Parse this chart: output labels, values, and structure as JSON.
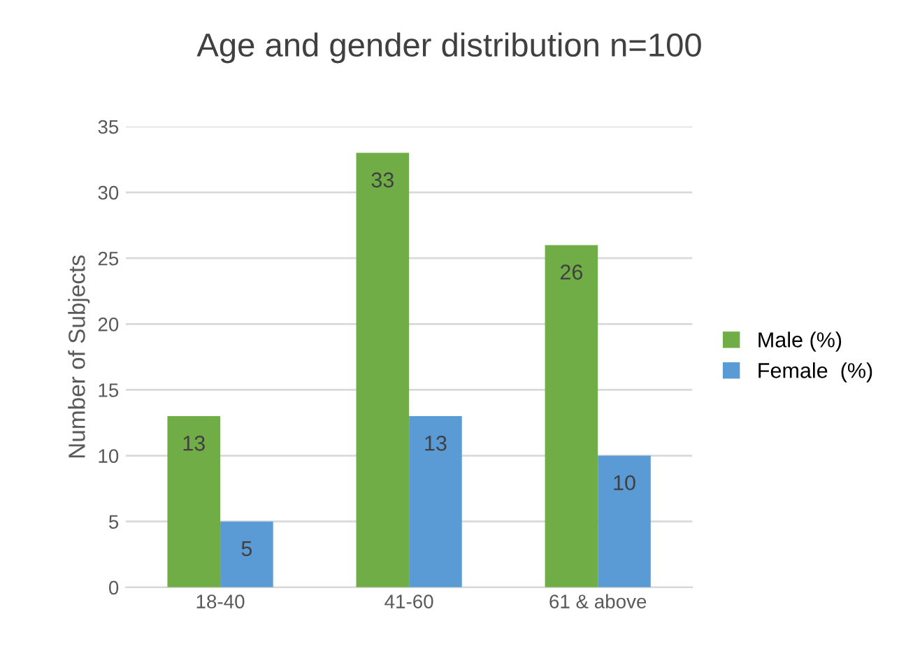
{
  "chart_data": {
    "type": "bar",
    "title": "Age and gender distribution n=100",
    "ylabel": "Number of Subjects",
    "categories": [
      "18-40",
      "41-60",
      "61 & above"
    ],
    "series": [
      {
        "name": "Male (%)",
        "color": "#70ad47",
        "values": [
          13,
          33,
          26
        ]
      },
      {
        "name": "Female  (%)",
        "color": "#5b9bd5",
        "values": [
          5,
          13,
          10
        ]
      }
    ],
    "ylim": [
      0,
      35
    ],
    "yticks": [
      0,
      5,
      10,
      15,
      20,
      25,
      30,
      35
    ],
    "grid": "y",
    "legend": "right",
    "data_labels": true
  }
}
